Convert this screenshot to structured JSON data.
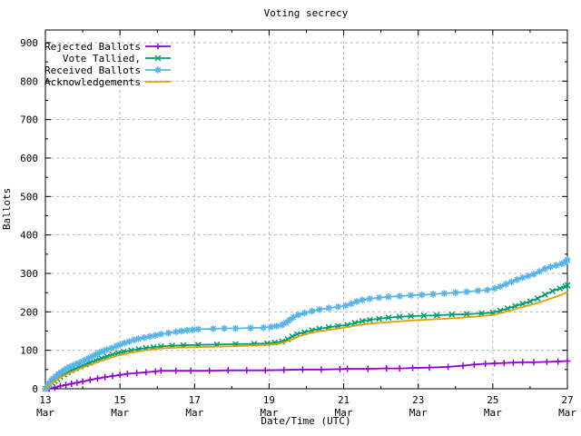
{
  "chart_data": {
    "type": "line",
    "title": "Voting secrecy",
    "xlabel": "Date/Time (UTC)",
    "ylabel": "Ballots",
    "xlim": [
      0,
      14
    ],
    "ylim": [
      0,
      933
    ],
    "grid": true,
    "legend_position": "top-left",
    "x_ticks": [
      {
        "pos": 0,
        "label": "13",
        "month": "Mar"
      },
      {
        "pos": 2,
        "label": "15",
        "month": "Mar"
      },
      {
        "pos": 4,
        "label": "17",
        "month": "Mar"
      },
      {
        "pos": 6,
        "label": "19",
        "month": "Mar"
      },
      {
        "pos": 8,
        "label": "21",
        "month": "Mar"
      },
      {
        "pos": 10,
        "label": "23",
        "month": "Mar"
      },
      {
        "pos": 12,
        "label": "25",
        "month": "Mar"
      },
      {
        "pos": 14,
        "label": "27",
        "month": "Mar"
      }
    ],
    "x_minor_ticks": [
      1,
      3,
      5,
      7,
      9,
      11,
      13
    ],
    "y_ticks": [
      0,
      100,
      200,
      300,
      400,
      500,
      600,
      700,
      800,
      900
    ],
    "y_minor_ticks": [
      50,
      150,
      250,
      350,
      450,
      550,
      650,
      750,
      850
    ],
    "series": [
      {
        "name": "Rejected Ballots",
        "color": "#9400D3",
        "marker": "plus",
        "points": [
          [
            0.1,
            0
          ],
          [
            0.25,
            3
          ],
          [
            0.4,
            7
          ],
          [
            0.55,
            10
          ],
          [
            0.7,
            13
          ],
          [
            0.85,
            16
          ],
          [
            1.0,
            19
          ],
          [
            1.2,
            23
          ],
          [
            1.4,
            27
          ],
          [
            1.6,
            30
          ],
          [
            1.8,
            33
          ],
          [
            2.0,
            36
          ],
          [
            2.2,
            39
          ],
          [
            2.45,
            41
          ],
          [
            2.7,
            43
          ],
          [
            2.95,
            45
          ],
          [
            3.1,
            47
          ],
          [
            3.5,
            47
          ],
          [
            3.9,
            47
          ],
          [
            4.4,
            47
          ],
          [
            4.9,
            48
          ],
          [
            5.4,
            48
          ],
          [
            5.9,
            48
          ],
          [
            6.4,
            49
          ],
          [
            6.9,
            50
          ],
          [
            7.4,
            50
          ],
          [
            7.9,
            51
          ],
          [
            8.1,
            52
          ],
          [
            8.65,
            52
          ],
          [
            9.15,
            53
          ],
          [
            9.5,
            53
          ],
          [
            9.85,
            54
          ],
          [
            10.3,
            55
          ],
          [
            10.8,
            57
          ],
          [
            11.2,
            60
          ],
          [
            11.5,
            63
          ],
          [
            11.8,
            65
          ],
          [
            12.05,
            66
          ],
          [
            12.3,
            67
          ],
          [
            12.55,
            68
          ],
          [
            12.8,
            69
          ],
          [
            13.1,
            69
          ],
          [
            13.45,
            70
          ],
          [
            13.75,
            71
          ],
          [
            14.0,
            72
          ]
        ]
      },
      {
        "name": "Vote Tallied,",
        "color": "#009E73",
        "marker": "cross",
        "points": [
          [
            0,
            0
          ],
          [
            0.06,
            5
          ],
          [
            0.12,
            10
          ],
          [
            0.18,
            15
          ],
          [
            0.25,
            20
          ],
          [
            0.32,
            25
          ],
          [
            0.4,
            31
          ],
          [
            0.5,
            37
          ],
          [
            0.6,
            43
          ],
          [
            0.7,
            48
          ],
          [
            0.82,
            53
          ],
          [
            0.95,
            58
          ],
          [
            1.08,
            63
          ],
          [
            1.2,
            68
          ],
          [
            1.35,
            74
          ],
          [
            1.5,
            79
          ],
          [
            1.65,
            84
          ],
          [
            1.8,
            89
          ],
          [
            1.95,
            93
          ],
          [
            2.1,
            96
          ],
          [
            2.3,
            100
          ],
          [
            2.5,
            103
          ],
          [
            2.7,
            106
          ],
          [
            2.9,
            108
          ],
          [
            3.1,
            110
          ],
          [
            3.4,
            112
          ],
          [
            3.7,
            113
          ],
          [
            4.1,
            114
          ],
          [
            4.6,
            115
          ],
          [
            5.1,
            116
          ],
          [
            5.6,
            117
          ],
          [
            5.95,
            118
          ],
          [
            6.15,
            120
          ],
          [
            6.35,
            123
          ],
          [
            6.5,
            129
          ],
          [
            6.62,
            136
          ],
          [
            6.75,
            142
          ],
          [
            6.95,
            147
          ],
          [
            7.15,
            152
          ],
          [
            7.35,
            156
          ],
          [
            7.6,
            160
          ],
          [
            7.85,
            163
          ],
          [
            8.1,
            166
          ],
          [
            8.3,
            171
          ],
          [
            8.5,
            176
          ],
          [
            8.7,
            179
          ],
          [
            8.95,
            182
          ],
          [
            9.2,
            185
          ],
          [
            9.5,
            187
          ],
          [
            9.8,
            189
          ],
          [
            10.15,
            190
          ],
          [
            10.5,
            191
          ],
          [
            10.9,
            193
          ],
          [
            11.3,
            194
          ],
          [
            11.7,
            196
          ],
          [
            12.0,
            198
          ],
          [
            12.2,
            203
          ],
          [
            12.4,
            209
          ],
          [
            12.6,
            215
          ],
          [
            12.8,
            221
          ],
          [
            13.0,
            227
          ],
          [
            13.2,
            235
          ],
          [
            13.4,
            245
          ],
          [
            13.6,
            254
          ],
          [
            13.8,
            261
          ],
          [
            13.95,
            266
          ],
          [
            14.0,
            269
          ]
        ]
      },
      {
        "name": "Received Ballots",
        "color": "#56B4E9",
        "marker": "star",
        "points": [
          [
            0,
            0
          ],
          [
            0.05,
            6
          ],
          [
            0.1,
            13
          ],
          [
            0.15,
            20
          ],
          [
            0.2,
            26
          ],
          [
            0.28,
            32
          ],
          [
            0.35,
            38
          ],
          [
            0.42,
            43
          ],
          [
            0.5,
            48
          ],
          [
            0.58,
            53
          ],
          [
            0.66,
            57
          ],
          [
            0.75,
            61
          ],
          [
            0.85,
            65
          ],
          [
            0.95,
            69
          ],
          [
            1.05,
            74
          ],
          [
            1.15,
            79
          ],
          [
            1.25,
            84
          ],
          [
            1.35,
            89
          ],
          [
            1.45,
            94
          ],
          [
            1.55,
            98
          ],
          [
            1.65,
            102
          ],
          [
            1.78,
            106
          ],
          [
            1.9,
            111
          ],
          [
            2.0,
            115
          ],
          [
            2.12,
            119
          ],
          [
            2.25,
            123
          ],
          [
            2.38,
            127
          ],
          [
            2.5,
            130
          ],
          [
            2.65,
            133
          ],
          [
            2.8,
            136
          ],
          [
            2.95,
            139
          ],
          [
            3.1,
            142
          ],
          [
            3.3,
            145
          ],
          [
            3.5,
            148
          ],
          [
            3.65,
            150
          ],
          [
            3.8,
            152
          ],
          [
            3.95,
            153
          ],
          [
            4.1,
            155
          ],
          [
            4.5,
            156
          ],
          [
            4.8,
            157
          ],
          [
            5.1,
            157
          ],
          [
            5.5,
            158
          ],
          [
            5.85,
            159
          ],
          [
            6.05,
            161
          ],
          [
            6.2,
            163
          ],
          [
            6.35,
            166
          ],
          [
            6.45,
            172
          ],
          [
            6.55,
            179
          ],
          [
            6.65,
            186
          ],
          [
            6.78,
            192
          ],
          [
            6.95,
            197
          ],
          [
            7.15,
            202
          ],
          [
            7.35,
            206
          ],
          [
            7.6,
            210
          ],
          [
            7.85,
            213
          ],
          [
            8.05,
            216
          ],
          [
            8.2,
            221
          ],
          [
            8.35,
            227
          ],
          [
            8.5,
            231
          ],
          [
            8.7,
            234
          ],
          [
            8.95,
            237
          ],
          [
            9.2,
            239
          ],
          [
            9.5,
            241
          ],
          [
            9.8,
            243
          ],
          [
            10.1,
            244
          ],
          [
            10.4,
            246
          ],
          [
            10.7,
            248
          ],
          [
            11.0,
            250
          ],
          [
            11.3,
            252
          ],
          [
            11.6,
            255
          ],
          [
            11.85,
            257
          ],
          [
            12.05,
            261
          ],
          [
            12.2,
            266
          ],
          [
            12.35,
            272
          ],
          [
            12.5,
            278
          ],
          [
            12.65,
            284
          ],
          [
            12.8,
            289
          ],
          [
            12.95,
            293
          ],
          [
            13.1,
            298
          ],
          [
            13.25,
            305
          ],
          [
            13.4,
            312
          ],
          [
            13.55,
            317
          ],
          [
            13.7,
            321
          ],
          [
            13.85,
            325
          ],
          [
            13.95,
            330
          ],
          [
            14.0,
            335
          ]
        ]
      },
      {
        "name": "Acknowledgements",
        "color": "#E69F00",
        "marker": "none",
        "points": [
          [
            0,
            0
          ],
          [
            0.1,
            8
          ],
          [
            0.2,
            16
          ],
          [
            0.3,
            23
          ],
          [
            0.4,
            29
          ],
          [
            0.5,
            34
          ],
          [
            0.65,
            41
          ],
          [
            0.8,
            47
          ],
          [
            0.95,
            53
          ],
          [
            1.1,
            59
          ],
          [
            1.3,
            66
          ],
          [
            1.5,
            73
          ],
          [
            1.7,
            79
          ],
          [
            1.9,
            85
          ],
          [
            2.1,
            90
          ],
          [
            2.35,
            95
          ],
          [
            2.6,
            99
          ],
          [
            2.85,
            102
          ],
          [
            3.1,
            105
          ],
          [
            3.5,
            107
          ],
          [
            3.9,
            108
          ],
          [
            4.4,
            109
          ],
          [
            4.9,
            110
          ],
          [
            5.4,
            112
          ],
          [
            5.9,
            114
          ],
          [
            6.2,
            116
          ],
          [
            6.45,
            122
          ],
          [
            6.65,
            130
          ],
          [
            6.85,
            138
          ],
          [
            7.05,
            144
          ],
          [
            7.3,
            149
          ],
          [
            7.6,
            153
          ],
          [
            7.9,
            157
          ],
          [
            8.2,
            162
          ],
          [
            8.5,
            167
          ],
          [
            8.9,
            171
          ],
          [
            9.3,
            174
          ],
          [
            9.7,
            177
          ],
          [
            10.1,
            179
          ],
          [
            10.5,
            181
          ],
          [
            10.9,
            183
          ],
          [
            11.3,
            186
          ],
          [
            11.7,
            189
          ],
          [
            12.0,
            192
          ],
          [
            12.3,
            199
          ],
          [
            12.6,
            207
          ],
          [
            12.9,
            215
          ],
          [
            13.2,
            223
          ],
          [
            13.5,
            233
          ],
          [
            13.8,
            243
          ],
          [
            14.0,
            251
          ]
        ]
      }
    ]
  }
}
